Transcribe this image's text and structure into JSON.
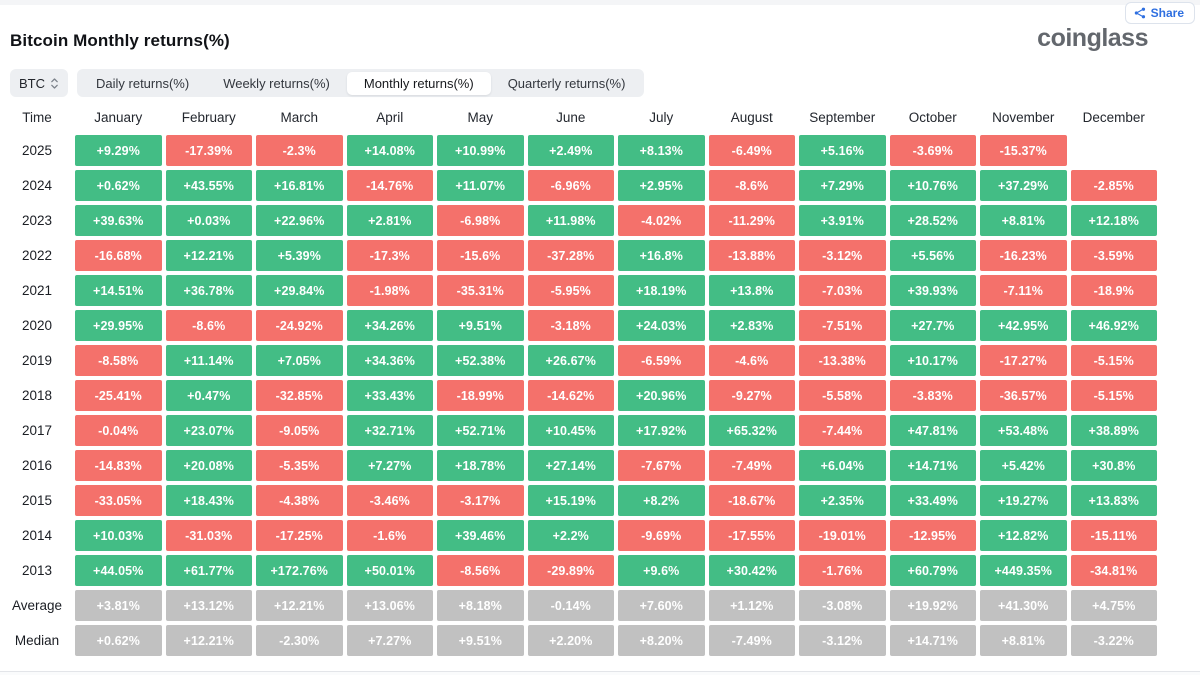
{
  "header": {
    "title": "Bitcoin Monthly returns(%)",
    "share_label": "Share",
    "logo_text": "coinglass"
  },
  "controls": {
    "coin_label": "BTC",
    "tabs": [
      {
        "label": "Daily returns(%)",
        "active": false
      },
      {
        "label": "Weekly returns(%)",
        "active": false
      },
      {
        "label": "Monthly returns(%)",
        "active": true
      },
      {
        "label": "Quarterly returns(%)",
        "active": false
      }
    ]
  },
  "table": {
    "time_header": "Time",
    "month_headers": [
      "January",
      "February",
      "March",
      "April",
      "May",
      "June",
      "July",
      "August",
      "September",
      "October",
      "November",
      "December"
    ],
    "rows": [
      {
        "label": "2025",
        "type": "year",
        "values": [
          "+9.29%",
          "-17.39%",
          "-2.3%",
          "+14.08%",
          "+10.99%",
          "+2.49%",
          "+8.13%",
          "-6.49%",
          "+5.16%",
          "-3.69%",
          "-15.37%",
          ""
        ]
      },
      {
        "label": "2024",
        "type": "year",
        "values": [
          "+0.62%",
          "+43.55%",
          "+16.81%",
          "-14.76%",
          "+11.07%",
          "-6.96%",
          "+2.95%",
          "-8.6%",
          "+7.29%",
          "+10.76%",
          "+37.29%",
          "-2.85%"
        ]
      },
      {
        "label": "2023",
        "type": "year",
        "values": [
          "+39.63%",
          "+0.03%",
          "+22.96%",
          "+2.81%",
          "-6.98%",
          "+11.98%",
          "-4.02%",
          "-11.29%",
          "+3.91%",
          "+28.52%",
          "+8.81%",
          "+12.18%"
        ]
      },
      {
        "label": "2022",
        "type": "year",
        "values": [
          "-16.68%",
          "+12.21%",
          "+5.39%",
          "-17.3%",
          "-15.6%",
          "-37.28%",
          "+16.8%",
          "-13.88%",
          "-3.12%",
          "+5.56%",
          "-16.23%",
          "-3.59%"
        ]
      },
      {
        "label": "2021",
        "type": "year",
        "values": [
          "+14.51%",
          "+36.78%",
          "+29.84%",
          "-1.98%",
          "-35.31%",
          "-5.95%",
          "+18.19%",
          "+13.8%",
          "-7.03%",
          "+39.93%",
          "-7.11%",
          "-18.9%"
        ]
      },
      {
        "label": "2020",
        "type": "year",
        "values": [
          "+29.95%",
          "-8.6%",
          "-24.92%",
          "+34.26%",
          "+9.51%",
          "-3.18%",
          "+24.03%",
          "+2.83%",
          "-7.51%",
          "+27.7%",
          "+42.95%",
          "+46.92%"
        ]
      },
      {
        "label": "2019",
        "type": "year",
        "values": [
          "-8.58%",
          "+11.14%",
          "+7.05%",
          "+34.36%",
          "+52.38%",
          "+26.67%",
          "-6.59%",
          "-4.6%",
          "-13.38%",
          "+10.17%",
          "-17.27%",
          "-5.15%"
        ]
      },
      {
        "label": "2018",
        "type": "year",
        "values": [
          "-25.41%",
          "+0.47%",
          "-32.85%",
          "+33.43%",
          "-18.99%",
          "-14.62%",
          "+20.96%",
          "-9.27%",
          "-5.58%",
          "-3.83%",
          "-36.57%",
          "-5.15%"
        ]
      },
      {
        "label": "2017",
        "type": "year",
        "values": [
          "-0.04%",
          "+23.07%",
          "-9.05%",
          "+32.71%",
          "+52.71%",
          "+10.45%",
          "+17.92%",
          "+65.32%",
          "-7.44%",
          "+47.81%",
          "+53.48%",
          "+38.89%"
        ]
      },
      {
        "label": "2016",
        "type": "year",
        "values": [
          "-14.83%",
          "+20.08%",
          "-5.35%",
          "+7.27%",
          "+18.78%",
          "+27.14%",
          "-7.67%",
          "-7.49%",
          "+6.04%",
          "+14.71%",
          "+5.42%",
          "+30.8%"
        ]
      },
      {
        "label": "2015",
        "type": "year",
        "values": [
          "-33.05%",
          "+18.43%",
          "-4.38%",
          "-3.46%",
          "-3.17%",
          "+15.19%",
          "+8.2%",
          "-18.67%",
          "+2.35%",
          "+33.49%",
          "+19.27%",
          "+13.83%"
        ]
      },
      {
        "label": "2014",
        "type": "year",
        "values": [
          "+10.03%",
          "-31.03%",
          "-17.25%",
          "-1.6%",
          "+39.46%",
          "+2.2%",
          "-9.69%",
          "-17.55%",
          "-19.01%",
          "-12.95%",
          "+12.82%",
          "-15.11%"
        ]
      },
      {
        "label": "2013",
        "type": "year",
        "values": [
          "+44.05%",
          "+61.77%",
          "+172.76%",
          "+50.01%",
          "-8.56%",
          "-29.89%",
          "+9.6%",
          "+30.42%",
          "-1.76%",
          "+60.79%",
          "+449.35%",
          "-34.81%"
        ]
      },
      {
        "label": "Average",
        "type": "summary",
        "values": [
          "+3.81%",
          "+13.12%",
          "+12.21%",
          "+13.06%",
          "+8.18%",
          "-0.14%",
          "+7.60%",
          "+1.12%",
          "-3.08%",
          "+19.92%",
          "+41.30%",
          "+4.75%"
        ]
      },
      {
        "label": "Median",
        "type": "summary",
        "values": [
          "+0.62%",
          "+12.21%",
          "-2.30%",
          "+7.27%",
          "+9.51%",
          "+2.20%",
          "+8.20%",
          "-7.49%",
          "-3.12%",
          "+14.71%",
          "+8.81%",
          "-3.22%"
        ]
      }
    ]
  },
  "colors": {
    "positive": "#43bd85",
    "negative": "#f4716b",
    "summary": "#c1c1c1"
  }
}
